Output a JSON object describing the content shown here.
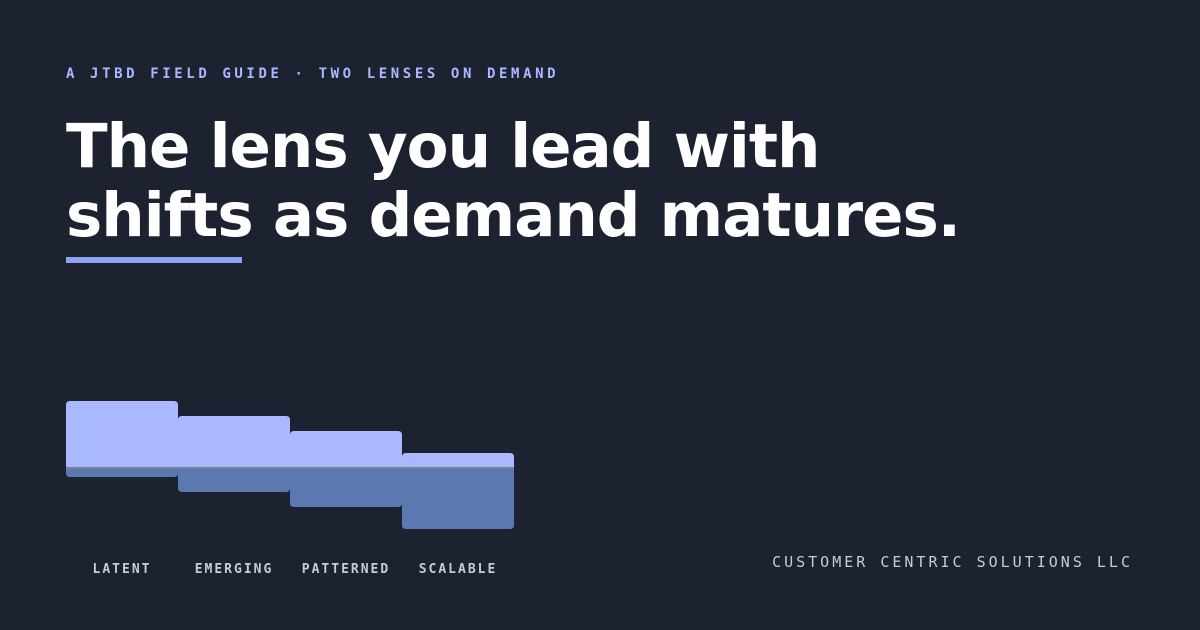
{
  "eyebrow": "A JTBD FIELD GUIDE · TWO LENSES ON DEMAND",
  "headline": [
    "The lens you lead with",
    "shifts as demand matures."
  ],
  "footer": "CUSTOMER CENTRIC SOLUTIONS LLC",
  "chart_data": {
    "type": "bar",
    "categories": [
      "LATENT",
      "EMERGING",
      "PATTERNED",
      "SCALABLE"
    ],
    "series": [
      {
        "color": "#aab8ff",
        "values": [
          67,
          52,
          37,
          15
        ]
      },
      {
        "color": "#5b78b0",
        "values": [
          -9,
          -24,
          -39,
          -61
        ]
      }
    ],
    "ylim": [
      -70,
      70
    ]
  }
}
